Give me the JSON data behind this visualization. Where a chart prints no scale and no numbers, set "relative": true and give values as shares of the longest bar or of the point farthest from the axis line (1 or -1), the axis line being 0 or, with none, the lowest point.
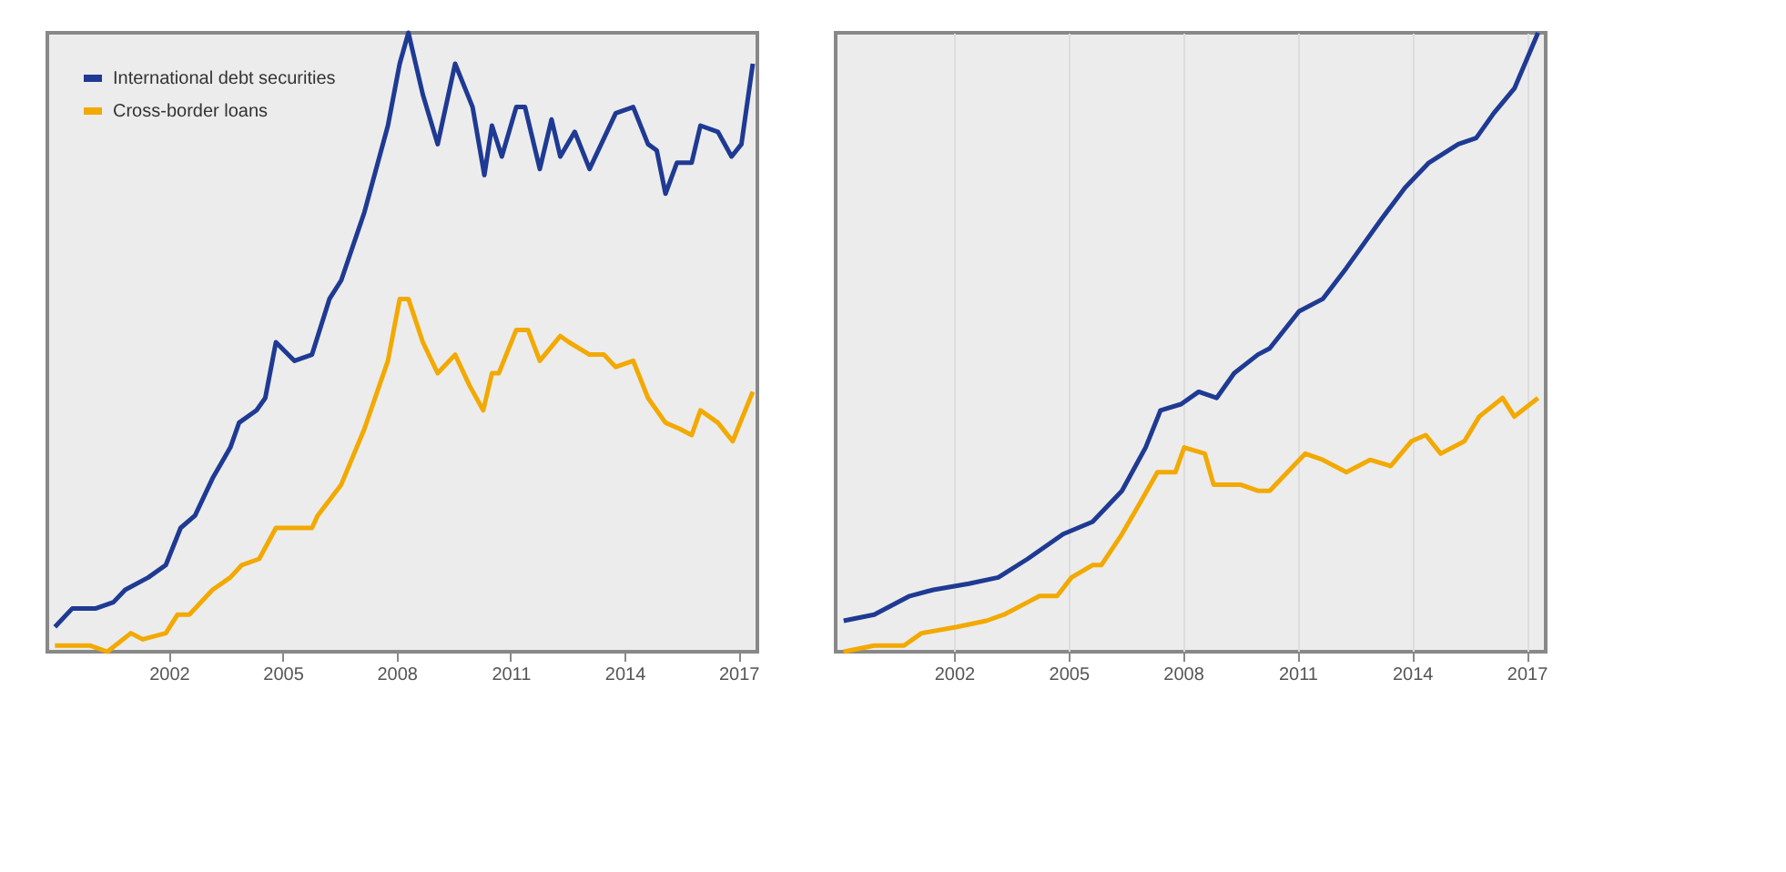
{
  "chart_data": [
    {
      "type": "line",
      "relative": true,
      "xlim": [
        1998.8,
        2017.5
      ],
      "xticks": [
        2002,
        2005,
        2008,
        2011,
        2014,
        2017
      ],
      "legend": "top left",
      "grid": false,
      "series": [
        {
          "name": "International debt securities",
          "color": "#1f3a93",
          "x": [
            1999.0,
            1999.46,
            2000.08,
            2000.54,
            2000.85,
            2001.46,
            2001.92,
            2002.31,
            2002.69,
            2003.15,
            2003.62,
            2003.85,
            2004.31,
            2004.54,
            2004.82,
            2005.31,
            2005.77,
            2006.23,
            2006.54,
            2007.15,
            2007.77,
            2008.08,
            2008.31,
            2008.69,
            2009.08,
            2009.54,
            2010.0,
            2010.31,
            2010.51,
            2010.77,
            2011.15,
            2011.38,
            2011.77,
            2012.08,
            2012.31,
            2012.69,
            2013.08,
            2013.77,
            2014.23,
            2014.62,
            2014.85,
            2015.08,
            2015.38,
            2015.77,
            2016.0,
            2016.46,
            2016.82,
            2017.08,
            2017.38
          ],
          "values": [
            0.04,
            0.07,
            0.07,
            0.08,
            0.1,
            0.12,
            0.14,
            0.2,
            0.22,
            0.28,
            0.33,
            0.37,
            0.39,
            0.41,
            0.5,
            0.47,
            0.48,
            0.57,
            0.6,
            0.71,
            0.85,
            0.95,
            1.0,
            0.9,
            0.82,
            0.95,
            0.88,
            0.77,
            0.85,
            0.8,
            0.88,
            0.88,
            0.78,
            0.86,
            0.8,
            0.84,
            0.78,
            0.87,
            0.88,
            0.82,
            0.81,
            0.74,
            0.79,
            0.79,
            0.85,
            0.84,
            0.8,
            0.82,
            0.95
          ]
        },
        {
          "name": "Cross-border loans",
          "color": "#f2a900",
          "x": [
            1999.0,
            1999.46,
            1999.92,
            2000.38,
            2001.0,
            2001.31,
            2001.92,
            2002.23,
            2002.54,
            2003.15,
            2003.62,
            2003.92,
            2004.38,
            2004.82,
            2005.31,
            2005.77,
            2005.92,
            2006.54,
            2007.15,
            2007.77,
            2008.08,
            2008.31,
            2008.69,
            2009.08,
            2009.54,
            2009.92,
            2010.28,
            2010.51,
            2010.69,
            2011.15,
            2011.46,
            2011.77,
            2012.31,
            2012.54,
            2013.08,
            2013.46,
            2013.77,
            2014.23,
            2014.62,
            2015.08,
            2015.46,
            2015.77,
            2016.0,
            2016.46,
            2016.85,
            2017.38
          ],
          "values": [
            0.01,
            0.01,
            0.01,
            0.0,
            0.03,
            0.02,
            0.03,
            0.06,
            0.06,
            0.1,
            0.12,
            0.14,
            0.15,
            0.2,
            0.2,
            0.2,
            0.22,
            0.27,
            0.36,
            0.47,
            0.57,
            0.57,
            0.5,
            0.45,
            0.48,
            0.43,
            0.39,
            0.45,
            0.45,
            0.52,
            0.52,
            0.47,
            0.51,
            0.5,
            0.48,
            0.48,
            0.46,
            0.47,
            0.41,
            0.37,
            0.36,
            0.35,
            0.39,
            0.37,
            0.34,
            0.42
          ]
        }
      ]
    },
    {
      "type": "line",
      "relative": true,
      "xlim": [
        1998.9,
        2017.5
      ],
      "xticks": [
        2002,
        2005,
        2008,
        2011,
        2014,
        2017
      ],
      "legend": "top left",
      "grid": "x",
      "series": [
        {
          "name": "International debt securities",
          "color": "#1f3a93",
          "x": [
            1999.11,
            1999.91,
            2000.84,
            2001.46,
            2002.39,
            2003.16,
            2003.93,
            2004.86,
            2005.63,
            2006.4,
            2007.02,
            2007.41,
            2007.95,
            2008.41,
            2008.88,
            2009.34,
            2009.96,
            2010.27,
            2011.04,
            2011.66,
            2012.28,
            2013.21,
            2013.82,
            2014.44,
            2015.21,
            2015.68,
            2016.14,
            2016.68,
            2017.3
          ],
          "values": [
            0.05,
            0.06,
            0.09,
            0.1,
            0.11,
            0.12,
            0.15,
            0.19,
            0.21,
            0.26,
            0.33,
            0.39,
            0.4,
            0.42,
            0.41,
            0.45,
            0.48,
            0.49,
            0.55,
            0.57,
            0.62,
            0.7,
            0.75,
            0.79,
            0.82,
            0.83,
            0.87,
            0.91,
            1.0
          ]
        },
        {
          "name": "Cross-border loans",
          "color": "#f2a900",
          "x": [
            1999.11,
            1999.91,
            2000.69,
            2001.15,
            2002.08,
            2002.85,
            2003.31,
            2003.93,
            2004.24,
            2004.7,
            2005.08,
            2005.63,
            2005.86,
            2006.4,
            2006.87,
            2007.33,
            2007.8,
            2008.03,
            2008.57,
            2008.8,
            2009.5,
            2009.96,
            2010.27,
            2010.89,
            2011.2,
            2011.66,
            2012.28,
            2012.9,
            2013.44,
            2013.98,
            2014.36,
            2014.75,
            2015.37,
            2015.76,
            2016.37,
            2016.68,
            2017.3
          ],
          "values": [
            0.0,
            0.01,
            0.01,
            0.03,
            0.04,
            0.05,
            0.06,
            0.08,
            0.09,
            0.09,
            0.12,
            0.14,
            0.14,
            0.19,
            0.24,
            0.29,
            0.29,
            0.33,
            0.32,
            0.27,
            0.27,
            0.26,
            0.26,
            0.3,
            0.32,
            0.31,
            0.29,
            0.31,
            0.3,
            0.34,
            0.35,
            0.32,
            0.34,
            0.38,
            0.41,
            0.38,
            0.41
          ]
        }
      ]
    }
  ]
}
